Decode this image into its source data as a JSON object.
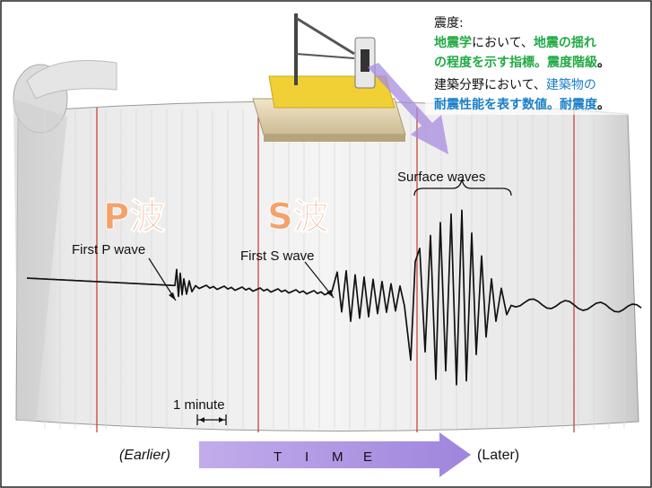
{
  "definition": {
    "heading": "震度:",
    "seismology": {
      "term": "地震学",
      "connector": "において、",
      "subject": "地震の揺れ",
      "line2_prefix": "の程度を示す指標。",
      "name": "震度階級",
      "period": "。"
    },
    "architecture": {
      "prefix": "建築分野において、",
      "subject": "建築物の",
      "line2_prefix": "耐震性能を表す数値。",
      "name": "耐震度",
      "period": "。"
    }
  },
  "labels": {
    "p_wave_jp": "P波",
    "s_wave_jp": "S波",
    "first_p": "First P wave",
    "first_s": "First S wave",
    "surface": "Surface waves",
    "one_minute": "1 minute"
  },
  "timeline": {
    "earlier": "(Earlier)",
    "time_letters": [
      "T",
      "I",
      "M",
      "E"
    ],
    "later": "(Later)"
  },
  "colors": {
    "green": "#22aa44",
    "blue": "#1a7fc8",
    "orange": "#f4a26a",
    "red_line": "#c0392b",
    "arrow": "#a78be0"
  }
}
